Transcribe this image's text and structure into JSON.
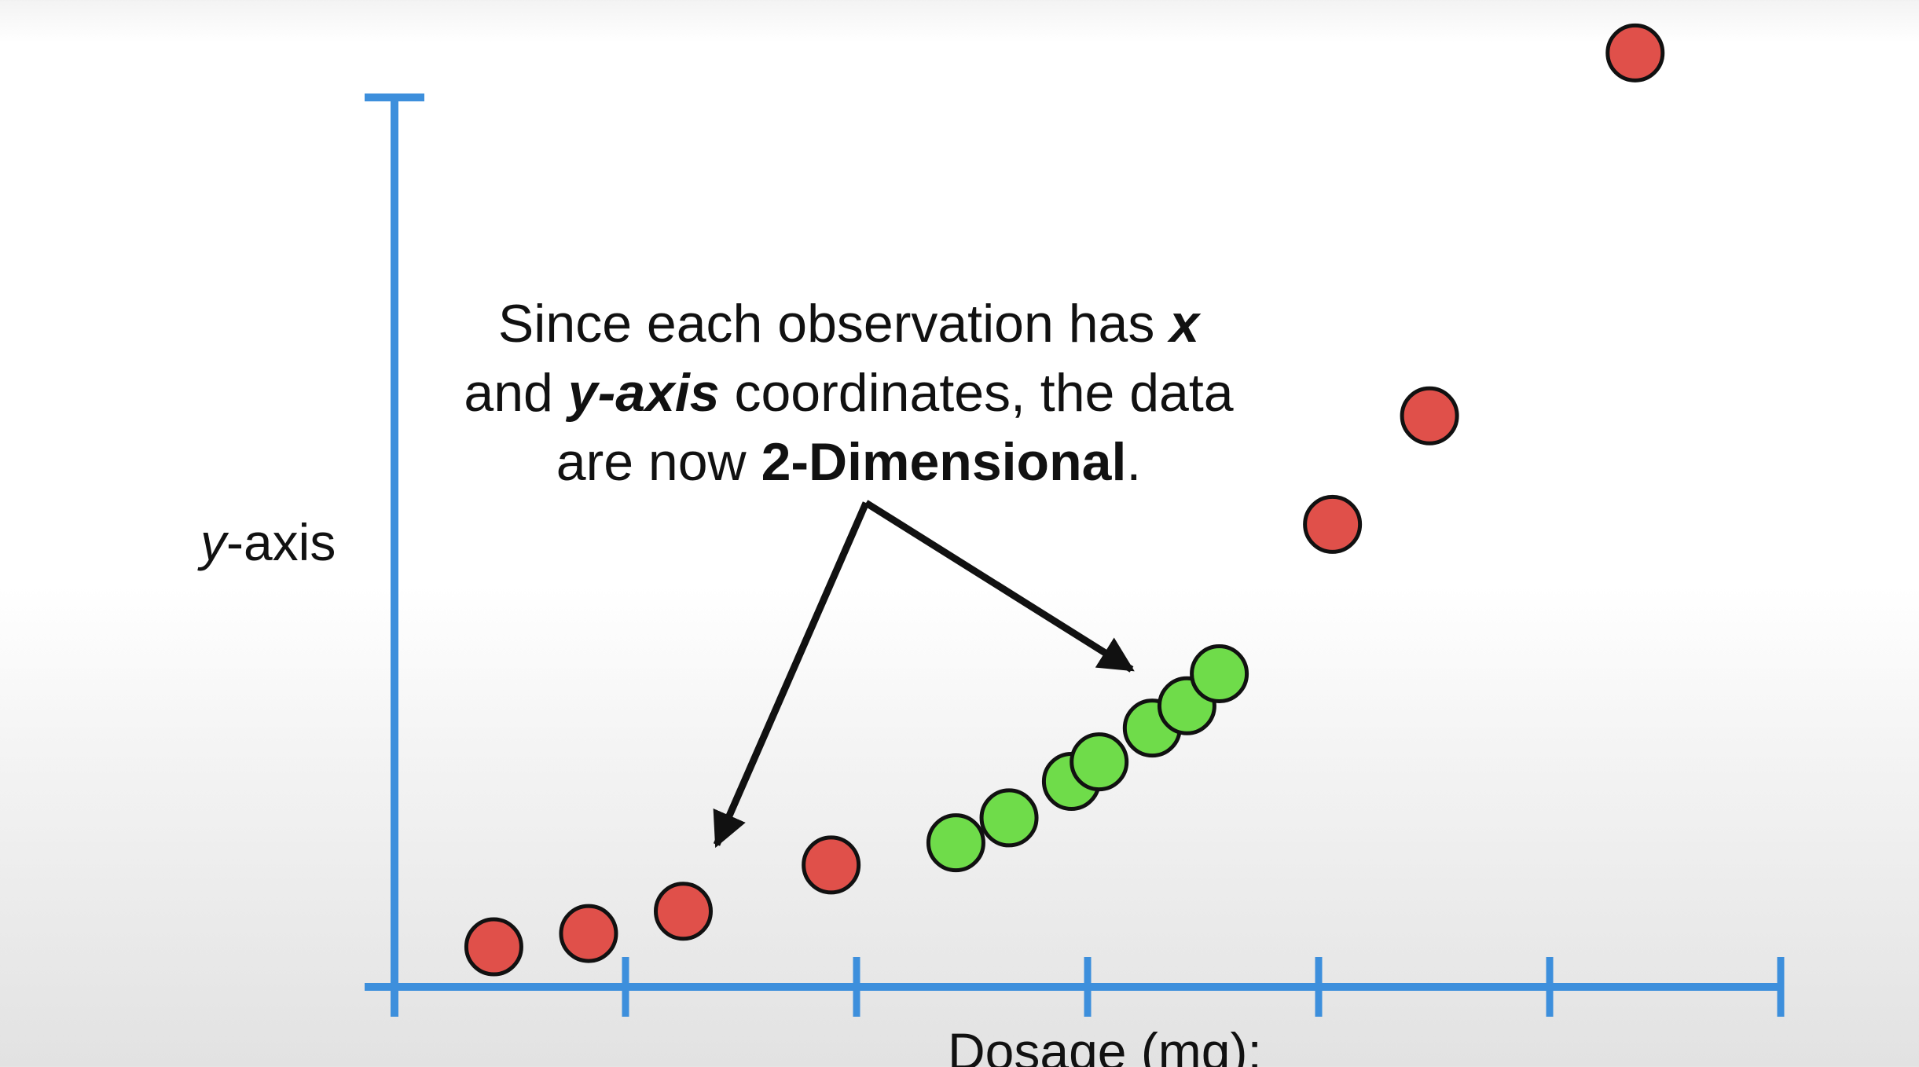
{
  "annotation": {
    "line1_prefix": "Since each observation has ",
    "line1_x": "x",
    "line2_prefix": "and ",
    "line2_yaxis": "y-axis",
    "line2_suffix": " coordinates, the data",
    "line3_prefix": "are now ",
    "line3_bold": "2-Dimensional",
    "line3_suffix": "."
  },
  "chart_data": {
    "type": "scatter",
    "title": "",
    "xlabel": "Dosage (mg):",
    "ylabel_prefix": "y",
    "ylabel_suffix": "-axis",
    "xlim": [
      0,
      6
    ],
    "ylim": [
      0,
      10
    ],
    "x_ticks": 6,
    "grid": false,
    "series": [
      {
        "color": "#e0504a",
        "points": [
          [
            0.43,
            0.45
          ],
          [
            0.84,
            0.6
          ],
          [
            1.25,
            0.85
          ],
          [
            1.89,
            1.37
          ],
          [
            4.06,
            5.2
          ],
          [
            4.48,
            6.42
          ],
          [
            5.37,
            10.5
          ]
        ]
      },
      {
        "color": "#6fdc4a",
        "points": [
          [
            2.43,
            1.62
          ],
          [
            2.66,
            1.9
          ],
          [
            2.93,
            2.31
          ],
          [
            3.05,
            2.53
          ],
          [
            3.28,
            2.91
          ],
          [
            3.43,
            3.16
          ],
          [
            3.57,
            3.52
          ]
        ]
      }
    ],
    "colors": {
      "axis": "#3d8fdc",
      "marker_stroke": "#111111",
      "arrow": "#111111"
    }
  }
}
